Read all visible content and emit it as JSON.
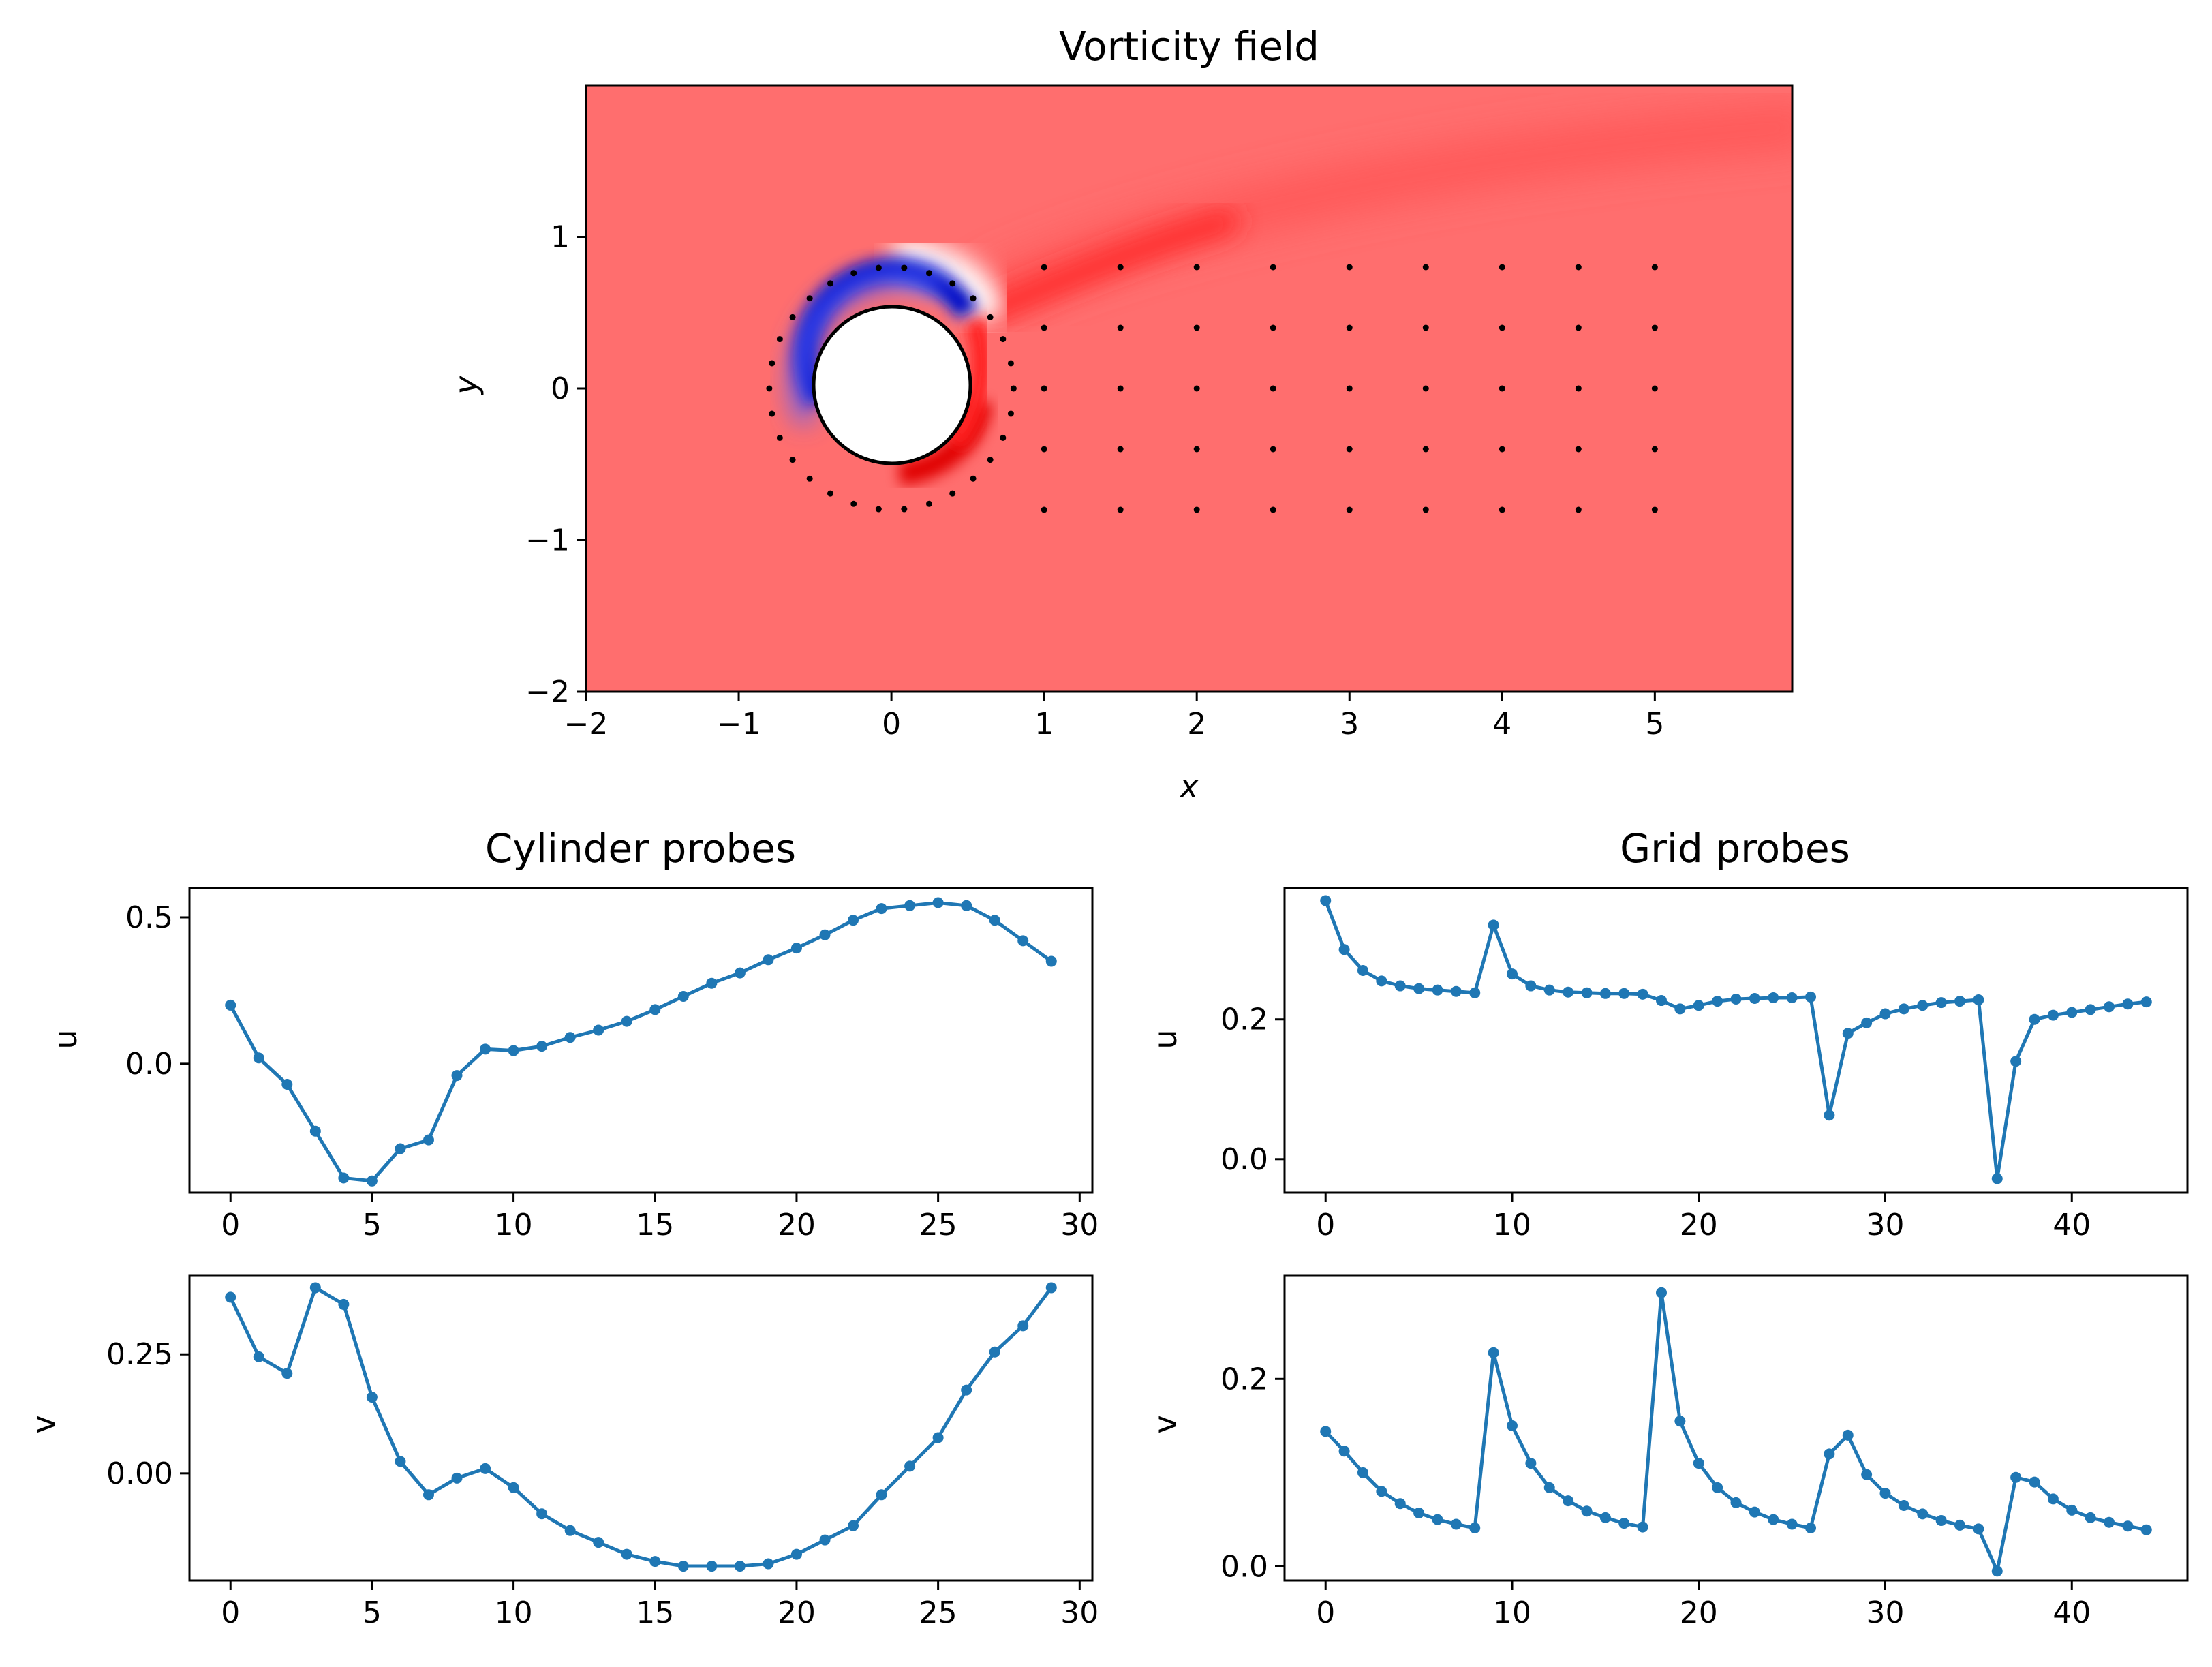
{
  "chart_data": [
    {
      "type": "heatmap",
      "title": "Vorticity field",
      "xlabel": "x",
      "ylabel": "y",
      "xlim": [
        -2,
        5.9
      ],
      "ylim": [
        -2,
        2
      ],
      "xticks": [
        -2,
        -1,
        0,
        1,
        2,
        3,
        4,
        5
      ],
      "yticks": [
        -2,
        -1,
        0,
        1
      ],
      "xtick_labels": [
        "−2",
        "−1",
        "0",
        "1",
        "2",
        "3",
        "4",
        "5"
      ],
      "ytick_labels": [
        "−2",
        "−1",
        "0",
        "1"
      ],
      "colormap": "bwr",
      "background_color": "#ff6e6e",
      "cylinder": {
        "center": [
          0,
          0
        ],
        "radius": 0.5
      },
      "cylinder_probe_ring_radius": 0.8,
      "cylinder_probe_count": 30,
      "grid_probes": {
        "x": [
          1,
          1.5,
          2,
          2.5,
          3,
          3.5,
          4,
          4.5,
          5
        ],
        "y": [
          0.8,
          0.4,
          0,
          -0.4,
          -0.8
        ]
      }
    },
    {
      "type": "line",
      "title": "Cylinder probes",
      "ylabel": "u",
      "x": [
        0,
        1,
        2,
        3,
        4,
        5,
        6,
        7,
        8,
        9,
        10,
        11,
        12,
        13,
        14,
        15,
        16,
        17,
        18,
        19,
        20,
        21,
        22,
        23,
        24,
        25,
        26,
        27,
        28,
        29
      ],
      "values": [
        0.2,
        0.02,
        -0.07,
        -0.23,
        -0.39,
        -0.4,
        -0.29,
        -0.26,
        -0.04,
        0.05,
        0.045,
        0.06,
        0.09,
        0.115,
        0.145,
        0.185,
        0.23,
        0.275,
        0.31,
        0.355,
        0.395,
        0.44,
        0.49,
        0.53,
        0.54,
        0.55,
        0.54,
        0.49,
        0.42,
        0.35
      ],
      "xlim": [
        -1.45,
        30.45
      ],
      "ylim": [
        -0.44,
        0.6
      ],
      "xticks": [
        0,
        5,
        10,
        15,
        20,
        25,
        30
      ],
      "yticks": [
        0.5,
        0.0
      ],
      "ytick_labels": [
        "0.5",
        "0.0"
      ],
      "color": "#1f77b4"
    },
    {
      "type": "line",
      "ylabel": "v",
      "x": [
        0,
        1,
        2,
        3,
        4,
        5,
        6,
        7,
        8,
        9,
        10,
        11,
        12,
        13,
        14,
        15,
        16,
        17,
        18,
        19,
        20,
        21,
        22,
        23,
        24,
        25,
        26,
        27,
        28,
        29
      ],
      "values": [
        0.37,
        0.245,
        0.21,
        0.39,
        0.355,
        0.16,
        0.025,
        -0.045,
        -0.01,
        0.01,
        -0.03,
        -0.085,
        -0.12,
        -0.145,
        -0.17,
        -0.185,
        -0.195,
        -0.195,
        -0.195,
        -0.19,
        -0.17,
        -0.14,
        -0.11,
        -0.045,
        0.015,
        0.075,
        0.175,
        0.255,
        0.31,
        0.39
      ],
      "xlim": [
        -1.45,
        30.45
      ],
      "ylim": [
        -0.225,
        0.415
      ],
      "xticks": [
        0,
        5,
        10,
        15,
        20,
        25,
        30
      ],
      "yticks": [
        0.25,
        0.0
      ],
      "ytick_labels": [
        "0.25",
        "0.00"
      ],
      "color": "#1f77b4"
    },
    {
      "type": "line",
      "title": "Grid probes",
      "ylabel": "u",
      "x": [
        0,
        1,
        2,
        3,
        4,
        5,
        6,
        7,
        8,
        9,
        10,
        11,
        12,
        13,
        14,
        15,
        16,
        17,
        18,
        19,
        20,
        21,
        22,
        23,
        24,
        25,
        26,
        27,
        28,
        29,
        30,
        31,
        32,
        33,
        34,
        35,
        36,
        37,
        38,
        39,
        40,
        41,
        42,
        43,
        44
      ],
      "values": [
        0.37,
        0.3,
        0.27,
        0.255,
        0.248,
        0.244,
        0.242,
        0.24,
        0.238,
        0.335,
        0.265,
        0.248,
        0.242,
        0.239,
        0.238,
        0.237,
        0.237,
        0.236,
        0.227,
        0.215,
        0.22,
        0.226,
        0.229,
        0.23,
        0.231,
        0.231,
        0.232,
        0.063,
        0.18,
        0.195,
        0.208,
        0.215,
        0.22,
        0.224,
        0.226,
        0.228,
        -0.028,
        0.14,
        0.2,
        0.206,
        0.21,
        0.214,
        0.218,
        0.222,
        0.225
      ],
      "xlim": [
        -2.2,
        46.2
      ],
      "ylim": [
        -0.048,
        0.388
      ],
      "xticks": [
        0,
        10,
        20,
        30,
        40
      ],
      "yticks": [
        0.2,
        0.0
      ],
      "ytick_labels": [
        "0.2",
        "0.0"
      ],
      "color": "#1f77b4"
    },
    {
      "type": "line",
      "ylabel": "v",
      "x": [
        0,
        1,
        2,
        3,
        4,
        5,
        6,
        7,
        8,
        9,
        10,
        11,
        12,
        13,
        14,
        15,
        16,
        17,
        18,
        19,
        20,
        21,
        22,
        23,
        24,
        25,
        26,
        27,
        28,
        29,
        30,
        31,
        32,
        33,
        34,
        35,
        36,
        37,
        38,
        39,
        40,
        41,
        42,
        43,
        44
      ],
      "values": [
        0.144,
        0.123,
        0.1,
        0.08,
        0.067,
        0.057,
        0.05,
        0.045,
        0.041,
        0.228,
        0.15,
        0.11,
        0.084,
        0.07,
        0.059,
        0.052,
        0.046,
        0.042,
        0.292,
        0.155,
        0.11,
        0.084,
        0.068,
        0.058,
        0.05,
        0.045,
        0.041,
        0.12,
        0.14,
        0.098,
        0.078,
        0.065,
        0.056,
        0.049,
        0.044,
        0.04,
        -0.005,
        0.095,
        0.09,
        0.072,
        0.06,
        0.052,
        0.047,
        0.043,
        0.039
      ],
      "xlim": [
        -2.2,
        46.2
      ],
      "ylim": [
        -0.015,
        0.31
      ],
      "xticks": [
        0,
        10,
        20,
        30,
        40
      ],
      "yticks": [
        0.2,
        0.0
      ],
      "ytick_labels": [
        "0.2",
        "0.0"
      ],
      "color": "#1f77b4"
    }
  ]
}
